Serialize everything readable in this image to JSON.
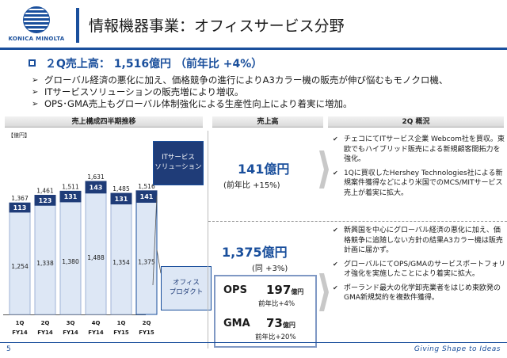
{
  "header": {
    "brand": "KONICA MINOLTA",
    "title": "情報機器事業：オフィスサービス分野"
  },
  "headline": "２Q売上高： 1,516億円 （前年比 +4%）",
  "bullets": [
    "グローバル経済の悪化に加え、価格競争の進行によりA3カラー機の販売が伸び悩むもモノクロ機、",
    "ITサービスソリューションの販売増により増収。",
    "OPS･GMA売上もグローバル体制強化による生産性向上により着実に増加。"
  ],
  "sections": {
    "chart": "売上構成四半期推移",
    "sales": "売上高",
    "overview": "2Q 概況"
  },
  "chart_data": {
    "type": "bar",
    "stacked": true,
    "unit": "【億円】",
    "categories": [
      [
        "1Q",
        "FY14"
      ],
      [
        "2Q",
        "FY14"
      ],
      [
        "3Q",
        "FY14"
      ],
      [
        "4Q",
        "FY14"
      ],
      [
        "1Q",
        "FY15"
      ],
      [
        "2Q",
        "FY15"
      ]
    ],
    "series": [
      {
        "name": "オフィスプロダクト",
        "values": [
          1254,
          1338,
          1380,
          1488,
          1354,
          1375
        ],
        "color": "#dde7f5"
      },
      {
        "name": "ITサービスソリューション",
        "values": [
          113,
          123,
          131,
          143,
          131,
          141
        ],
        "color": "#1f3c78"
      }
    ],
    "totals": [
      "1,367",
      "1,461",
      "1,511",
      "1,631",
      "1,485",
      "1,516"
    ],
    "highlight_index": 5,
    "labels": {
      "office": [
        "1,254",
        "1,338",
        "1,380",
        "1,488",
        "1,354",
        "1,375"
      ],
      "it": [
        "113",
        "123",
        "131",
        "143",
        "131",
        "141"
      ]
    }
  },
  "categories": {
    "it": [
      "ITサービス",
      "ソリューション"
    ],
    "office": [
      "オフィス",
      "プロダクト"
    ]
  },
  "sales": {
    "it": {
      "value": "141億円",
      "yoy": "(前年比 +15%)"
    },
    "office": {
      "value": "1,375億円",
      "yoy": "(同 +3%)"
    }
  },
  "segments": {
    "ops": {
      "name": "OPS",
      "value": "197",
      "unit": "億円",
      "yoy": "前年比+4%"
    },
    "gma": {
      "name": "GMA",
      "value": "73",
      "unit": "億円",
      "yoy": "前年比+20%"
    }
  },
  "overview_it": [
    "チェコにてITサービス企業 Webcom社を買収。東欧でもハイブリッド販売による新規顧客開拓力を強化。",
    "1Qに買収したHershey Technologies社による新規案件獲得などにより米国でのMCS/MITサービス売上が着実に拡大。"
  ],
  "overview_office": [
    "新興国を中心にグローバル経済の悪化に加え、価格競争に追随しない方針の結果A3カラー機は販売計画に届かず。",
    "グローバルにてOPS/GMAのサービスポートフォリオ強化を実施したことにより着実に拡大。",
    "ポーランド最大の化学卸売業者をはじめ東欧発のGMA新規契約を複数件獲得。"
  ],
  "footer": {
    "page": "5",
    "tagline": "Giving Shape to Ideas"
  }
}
